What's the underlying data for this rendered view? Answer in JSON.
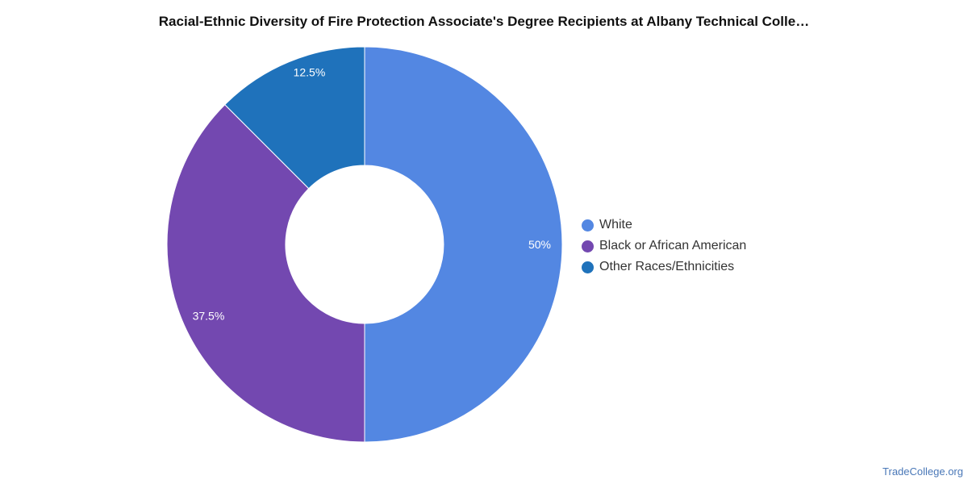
{
  "chart_data": {
    "type": "pie",
    "title": "Racial-Ethnic Diversity of Fire Protection Associate's Degree Recipients at Albany Technical Colle…",
    "categories": [
      "White",
      "Black or African American",
      "Other Races/Ethnicities"
    ],
    "values": [
      50,
      37.5,
      12.5
    ],
    "labels": [
      "50%",
      "37.5%",
      "12.5%"
    ],
    "colors": [
      "#5387e2",
      "#7348b0",
      "#1f72bb"
    ],
    "donut": true,
    "legend_position": "right"
  },
  "watermark": "TradeCollege.org"
}
